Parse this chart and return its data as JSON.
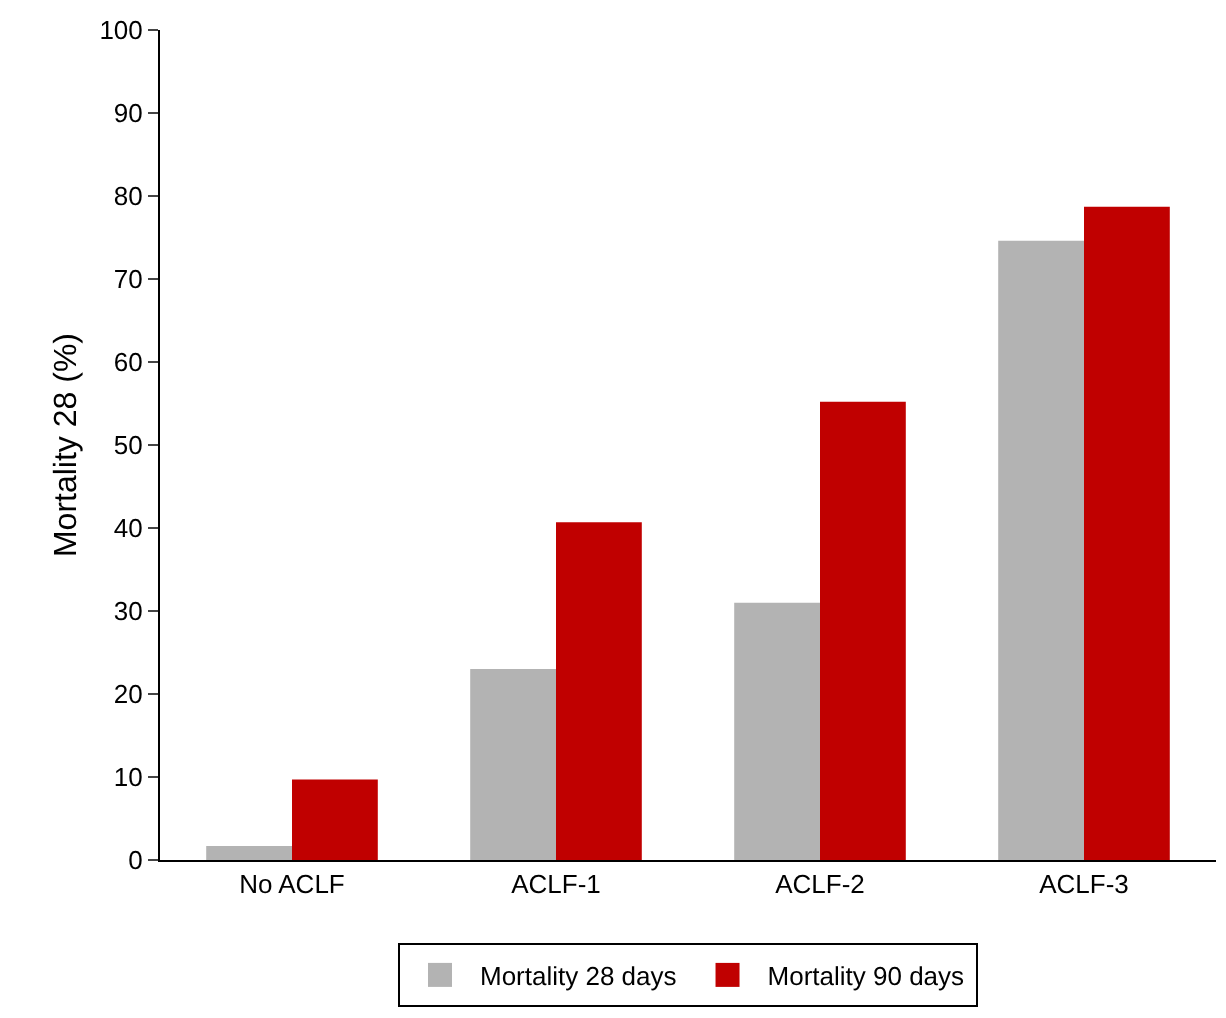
{
  "chart_data": {
    "type": "bar",
    "ylabel": "Mortality 28 (%)",
    "categories": [
      "No ACLF",
      "ACLF-1",
      "ACLF-2",
      "ACLF-3"
    ],
    "series": [
      {
        "name": "Mortality 28 days",
        "color": "#b3b3b3",
        "values": [
          1.7,
          23,
          31,
          74.6
        ]
      },
      {
        "name": "Mortality 90 days",
        "color": "#c00000",
        "values": [
          9.7,
          40.7,
          55.2,
          78.7
        ]
      }
    ],
    "ylim": [
      0,
      100
    ],
    "yticks": [
      0,
      10,
      20,
      30,
      40,
      50,
      60,
      70,
      80,
      90,
      100
    ],
    "grid": false,
    "legend": "bottom"
  }
}
